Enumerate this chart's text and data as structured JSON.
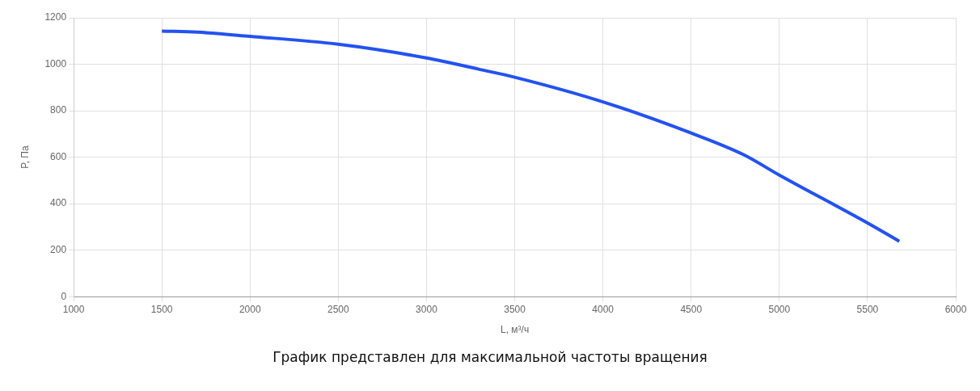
{
  "chart_data": {
    "type": "line",
    "xlabel": "L, м³/ч",
    "ylabel": "P, Па",
    "x": [
      1500,
      1700,
      2000,
      2500,
      3000,
      3300,
      3500,
      4000,
      4500,
      4800,
      5000,
      5500,
      5680
    ],
    "series": [
      {
        "color": "#2352f0",
        "values": [
          1143,
          1138,
          1120,
          1086,
          1027,
          978,
          944,
          838,
          704,
          610,
          523,
          317,
          238
        ]
      }
    ],
    "xlim": [
      1000,
      6000
    ],
    "xticks": [
      1000,
      1500,
      2000,
      2500,
      3000,
      3500,
      4000,
      4500,
      5000,
      5500,
      6000
    ],
    "ylim": [
      0,
      1200
    ],
    "yticks": [
      0,
      200,
      400,
      600,
      800,
      1000,
      1200
    ],
    "grid": true,
    "legend": false,
    "marker": "none",
    "line_style": "solid",
    "annotations": [
      "График представлен для максимальной частоты вращения"
    ]
  }
}
